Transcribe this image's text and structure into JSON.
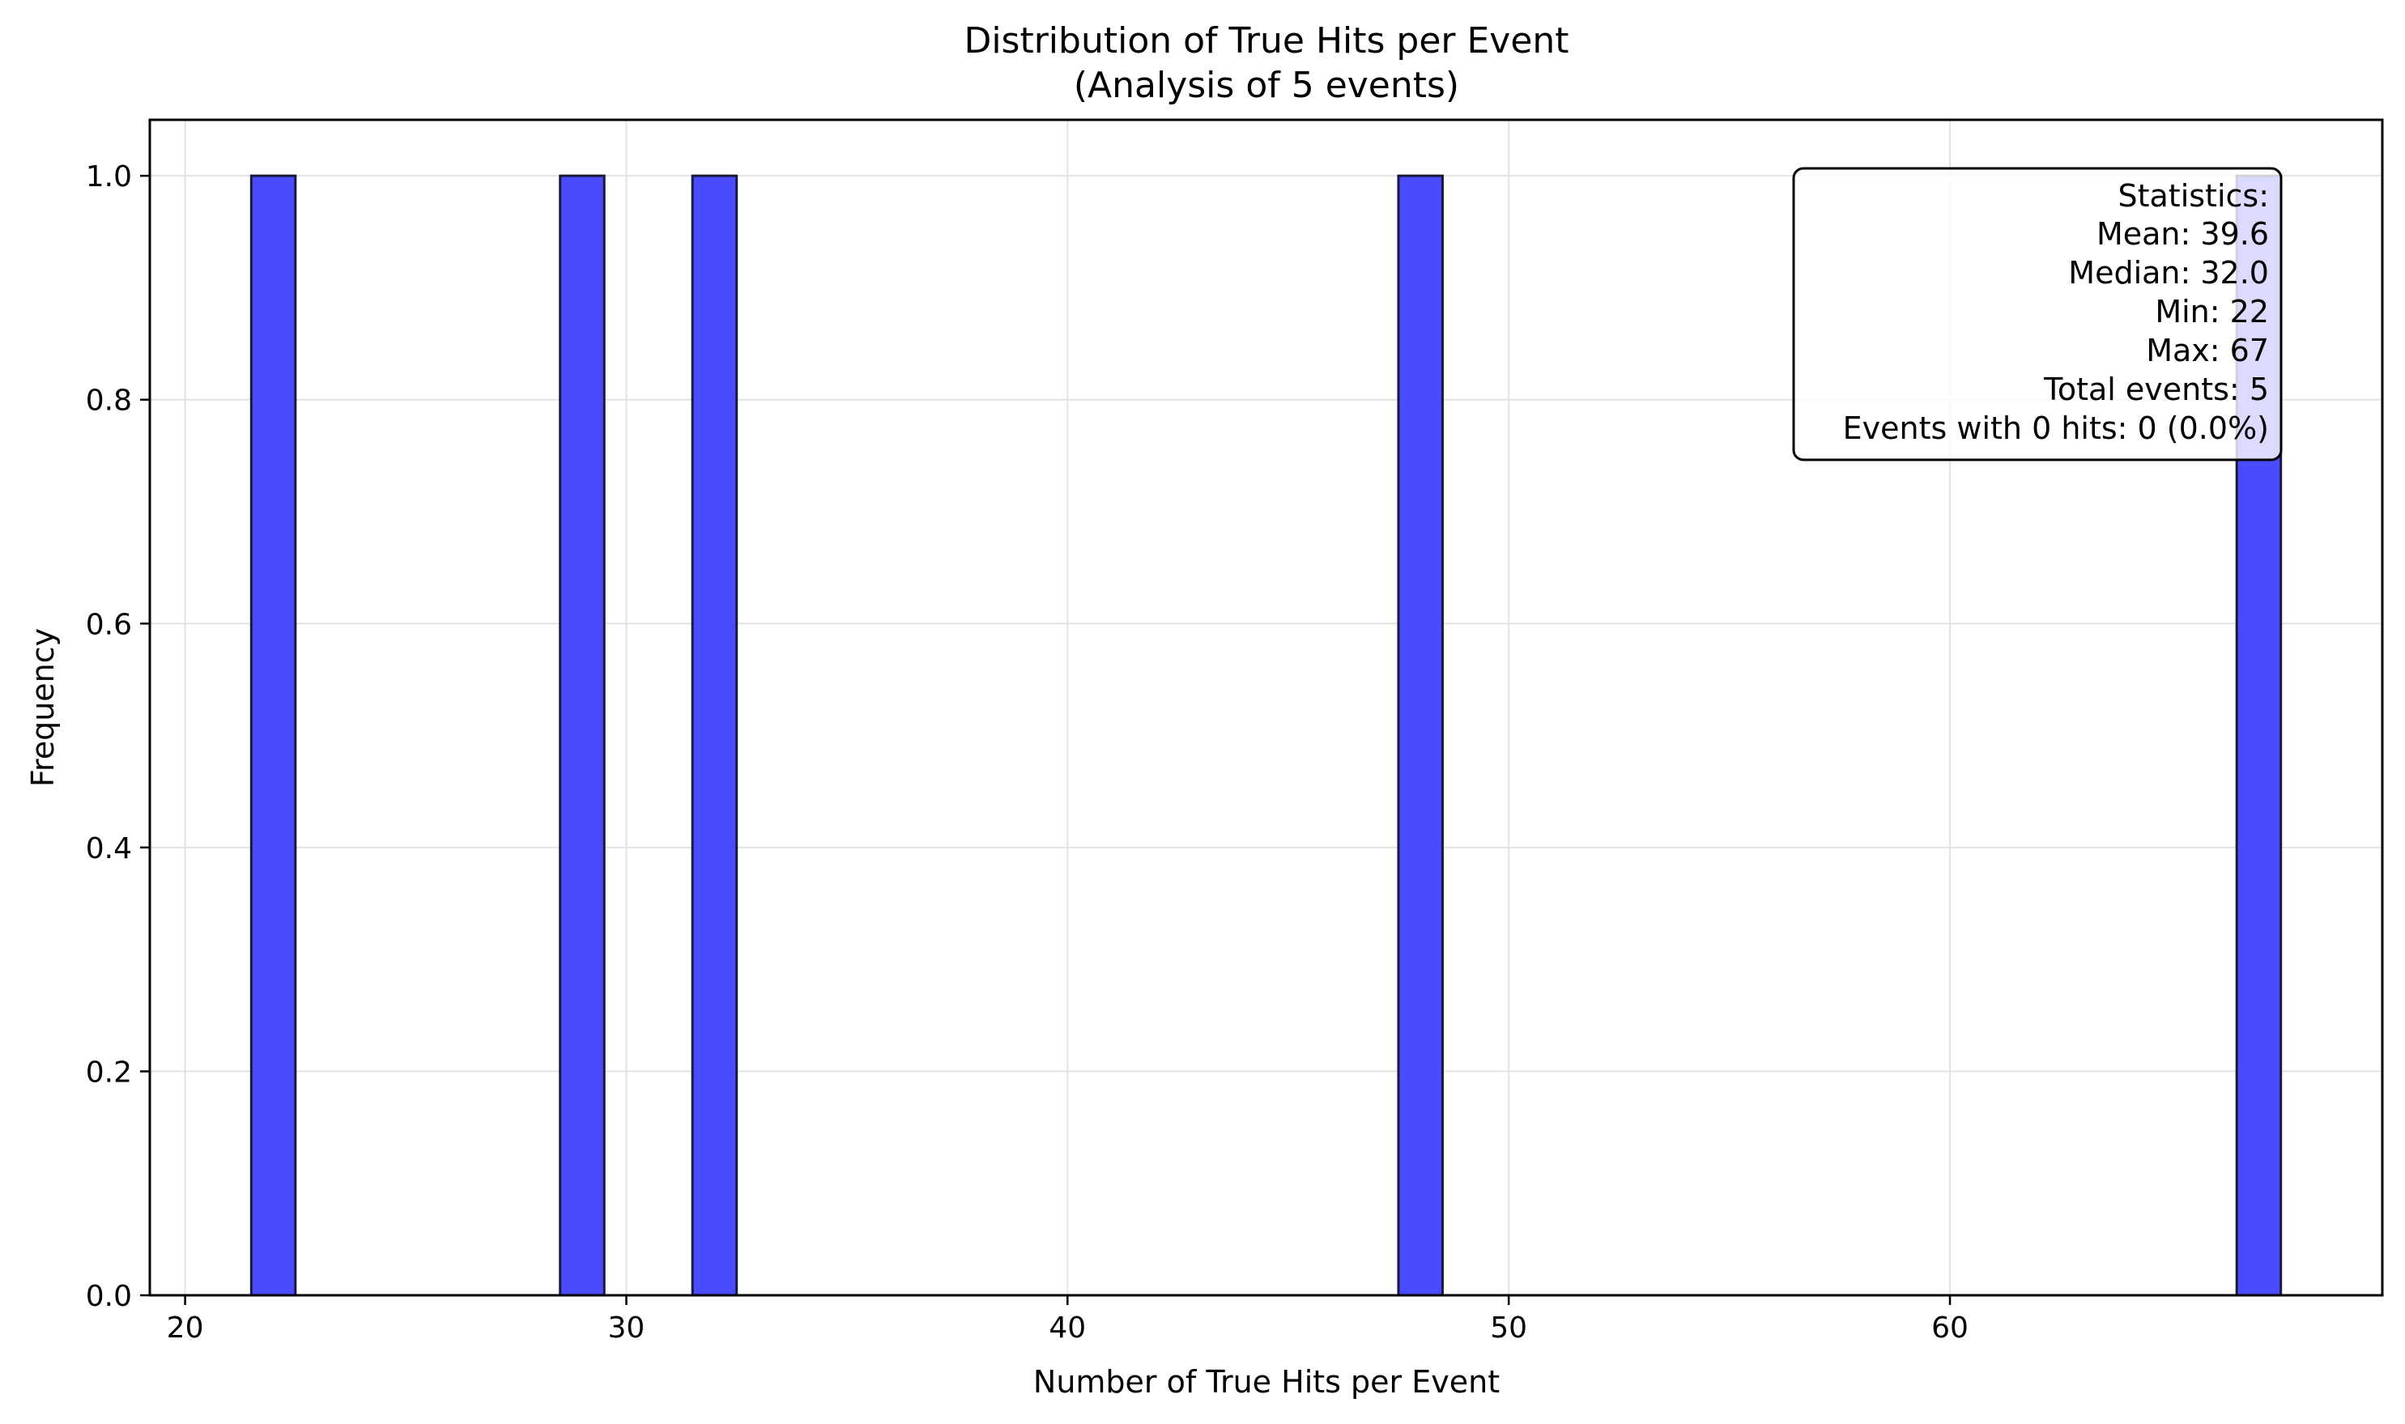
{
  "chart_data": {
    "type": "bar",
    "title": "Distribution of True Hits per Event",
    "subtitle": "(Analysis of 5 events)",
    "xlabel": "Number of True Hits per Event",
    "ylabel": "Frequency",
    "xlim": [
      19.2,
      69.8
    ],
    "ylim": [
      0,
      1.05
    ],
    "bin_width": 1.0,
    "x": [
      22,
      29,
      32,
      48,
      67
    ],
    "values": [
      1,
      1,
      1,
      1,
      1
    ],
    "xticks": [
      20,
      30,
      40,
      50,
      60
    ],
    "xtick_labels": [
      "20",
      "30",
      "40",
      "50",
      "60"
    ],
    "yticks": [
      0.0,
      0.2,
      0.4,
      0.6,
      0.8,
      1.0
    ],
    "ytick_labels": [
      "0.0",
      "0.2",
      "0.4",
      "0.6",
      "0.8",
      "1.0"
    ],
    "grid": true,
    "bar_color": "#4a4aff",
    "bar_edge_color": "#1a1a3a",
    "stats_box": {
      "position": "top-right",
      "lines": [
        "Statistics:",
        "Mean: 39.6",
        "Median: 32.0",
        "Min: 22",
        "Max: 67",
        "Total events: 5",
        "Events with 0 hits: 0 (0.0%)"
      ]
    }
  }
}
